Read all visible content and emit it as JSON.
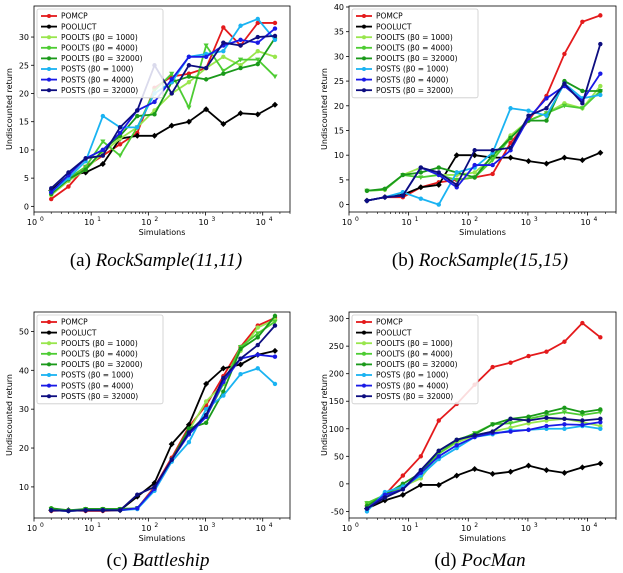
{
  "colors": {
    "POMCP": "#e41a1c",
    "POOLUCT": "#000000",
    "POOLTS (β0 = 1000)": "#99e64d",
    "POOLTS (β0 = 4000)": "#4dcc33",
    "POOLTS (β0 = 32000)": "#1a991a",
    "POSTS (β0 = 1000)": "#1ab3f2",
    "POSTS (β0 = 4000)": "#1a1ae6",
    "POSTS (β0 = 32000)": "#0d0d80"
  },
  "chart_data": [
    {
      "type": "line",
      "caption_prefix": "(a) ",
      "caption_title": "RockSample(11,11)",
      "xlabel": "Simulations",
      "ylabel": "Undiscounted return",
      "xscale": "log",
      "xlim": [
        1,
        30000
      ],
      "ylim": [
        -1,
        35.5
      ],
      "yticks": [
        0,
        5,
        10,
        15,
        20,
        25,
        30
      ],
      "legend": "top-left",
      "x": [
        2,
        4,
        8,
        16,
        32,
        64,
        128,
        256,
        512,
        1024,
        2048,
        4096,
        8192,
        16384
      ],
      "series": [
        {
          "name": "POMCP",
          "values": [
            1.3,
            3.5,
            7,
            9,
            11,
            13,
            21,
            23,
            23.5,
            24.5,
            31.7,
            28.5,
            32.5,
            32.5
          ]
        },
        {
          "name": "POOLUCT",
          "values": [
            2.8,
            5.5,
            6,
            7.5,
            12,
            12.5,
            12.5,
            14.3,
            15,
            17.2,
            14.6,
            16.5,
            16.3,
            18
          ]
        },
        {
          "name": "POOLTS (β0 = 1000)",
          "values": [
            2,
            4.5,
            6.5,
            9.5,
            12,
            14,
            17,
            20,
            22,
            24.5,
            26.5,
            25,
            27.5,
            26.5
          ]
        },
        {
          "name": "POOLTS (β0 = 4000)",
          "values": [
            2.5,
            5,
            7,
            11.5,
            9,
            14,
            20.5,
            23.5,
            17.5,
            28.5,
            24,
            26,
            26,
            23
          ]
        },
        {
          "name": "POOLTS (β0 = 32000)",
          "values": [
            2.2,
            4.8,
            6.5,
            10,
            12.5,
            16,
            16.3,
            22,
            23,
            22.5,
            23.5,
            24.5,
            25.2,
            29.8
          ]
        },
        {
          "name": "POSTS (β0 = 1000)",
          "values": [
            2.5,
            5,
            8,
            16,
            14,
            14,
            20,
            22,
            26.5,
            27,
            27.5,
            32,
            33.2,
            29.5
          ]
        },
        {
          "name": "POSTS (β0 = 4000)",
          "values": [
            2.5,
            5.5,
            8.5,
            10,
            13,
            17,
            18.5,
            22.5,
            26.5,
            26.5,
            28.5,
            29.5,
            29,
            31.5
          ]
        },
        {
          "name": "POSTS (β0 = 32000)",
          "values": [
            3.2,
            6,
            8.5,
            9,
            14,
            17,
            25,
            20,
            25,
            24.5,
            29,
            28.5,
            30,
            30.2
          ]
        }
      ]
    },
    {
      "type": "line",
      "caption_prefix": "(b) ",
      "caption_title": "RockSample(15,15)",
      "xlabel": "Simulations",
      "ylabel": "Undiscounted return",
      "xscale": "log",
      "xlim": [
        1,
        30000
      ],
      "ylim": [
        -1.5,
        40.2
      ],
      "yticks": [
        0,
        5,
        10,
        15,
        20,
        25,
        30,
        35,
        40
      ],
      "legend": "top-left",
      "x": [
        2,
        4,
        8,
        16,
        32,
        64,
        128,
        256,
        512,
        1024,
        2048,
        4096,
        8192,
        16384
      ],
      "series": [
        {
          "name": "POMCP",
          "values": [
            0.8,
            1.5,
            1.5,
            3.5,
            4.5,
            5,
            5.5,
            6.2,
            12.5,
            17,
            22,
            30.5,
            37,
            38.3
          ]
        },
        {
          "name": "POOLUCT",
          "values": [
            0.8,
            1.5,
            2,
            3.5,
            4,
            10,
            10,
            9.5,
            9.5,
            8.8,
            8.3,
            9.5,
            9,
            10.5
          ]
        },
        {
          "name": "POOLTS (β0 = 1000)",
          "values": [
            2.8,
            3,
            6,
            7.5,
            6,
            6,
            6.5,
            9.5,
            14,
            17,
            18.5,
            20.5,
            19.5,
            24
          ]
        },
        {
          "name": "POOLTS (β0 = 4000)",
          "values": [
            2.8,
            3,
            6,
            5.5,
            6,
            5,
            5.5,
            9,
            13.5,
            17,
            18.5,
            20,
            19.5,
            23
          ]
        },
        {
          "name": "POOLTS (β0 = 32000)",
          "values": [
            2.8,
            3.2,
            6,
            6.5,
            7.5,
            6.5,
            5.5,
            10,
            13.5,
            17,
            17,
            25,
            23,
            23
          ]
        },
        {
          "name": "POSTS (β0 = 1000)",
          "values": [
            0.8,
            1.5,
            2.5,
            1.2,
            0,
            6.5,
            7.5,
            10.5,
            19.5,
            19,
            18,
            24.5,
            21.5,
            22.2
          ]
        },
        {
          "name": "POSTS (β0 = 4000)",
          "values": [
            0.8,
            1.5,
            1.8,
            7.5,
            6,
            3.5,
            8,
            8,
            11,
            17.5,
            21.5,
            24,
            21,
            26.5
          ]
        },
        {
          "name": "POSTS (β0 = 32000)",
          "values": [
            0.8,
            1.5,
            1.8,
            7.5,
            6.5,
            4,
            11,
            11,
            11.5,
            18,
            19.5,
            24.5,
            20.5,
            32.5
          ]
        }
      ]
    },
    {
      "type": "line",
      "caption_prefix": "(c) ",
      "caption_title": "Battleship",
      "xlabel": "Simulations",
      "ylabel": "Undiscounted return",
      "xscale": "log",
      "xlim": [
        1,
        30000
      ],
      "ylim": [
        2,
        55
      ],
      "yticks": [
        10,
        20,
        30,
        40,
        50
      ],
      "legend": "top-left",
      "x": [
        2,
        4,
        8,
        16,
        32,
        64,
        128,
        256,
        512,
        1024,
        2048,
        4096,
        8192,
        16384
      ],
      "series": [
        {
          "name": "POMCP",
          "values": [
            3.8,
            4,
            3.8,
            3.8,
            4,
            4.5,
            10,
            17.5,
            25.5,
            31,
            38.5,
            46,
            51.5,
            53.5
          ]
        },
        {
          "name": "POOLUCT",
          "values": [
            4,
            4,
            4,
            4,
            4,
            7.5,
            11,
            21,
            26,
            36.5,
            40.5,
            41.5,
            44,
            45
          ]
        },
        {
          "name": "POOLTS (β0 = 1000)",
          "values": [
            4.5,
            3.8,
            4.3,
            4.3,
            4,
            4.5,
            9.5,
            17,
            24.5,
            32,
            36.5,
            45,
            51,
            53
          ]
        },
        {
          "name": "POOLTS (β0 = 4000)",
          "values": [
            4.3,
            3.8,
            4.3,
            4.3,
            4.3,
            4.5,
            9.5,
            17,
            24.5,
            28,
            36.5,
            46,
            49.5,
            52.5
          ]
        },
        {
          "name": "POOLTS (β0 = 32000)",
          "values": [
            4.5,
            4,
            4.3,
            4.3,
            4.3,
            4.5,
            9.5,
            17,
            25,
            26.5,
            34.5,
            45.5,
            48.5,
            54
          ]
        },
        {
          "name": "POSTS (β0 = 1000)",
          "values": [
            4,
            3.8,
            4,
            4,
            4,
            4.3,
            9,
            16.5,
            21.5,
            30,
            33.5,
            39,
            40.5,
            36.5
          ]
        },
        {
          "name": "POSTS (β0 = 4000)",
          "values": [
            4,
            3.8,
            4,
            4,
            4,
            4.5,
            9.5,
            17,
            23.5,
            28,
            37,
            43,
            44,
            43.5
          ]
        },
        {
          "name": "POSTS (β0 = 32000)",
          "values": [
            4,
            3.8,
            4,
            4,
            4,
            8,
            10,
            17,
            24,
            28.5,
            38,
            43,
            46.5,
            51.5
          ]
        }
      ]
    },
    {
      "type": "line",
      "caption_prefix": "(d) ",
      "caption_title": "PocMan",
      "xlabel": "Simulations",
      "ylabel": "Undiscounted return",
      "xscale": "log",
      "xlim": [
        1,
        30000
      ],
      "ylim": [
        -62,
        312
      ],
      "yticks": [
        -50,
        0,
        50,
        100,
        150,
        200,
        250,
        300
      ],
      "legend": "top-left",
      "x": [
        2,
        4,
        8,
        16,
        32,
        64,
        128,
        256,
        512,
        1024,
        2048,
        4096,
        8192,
        16384
      ],
      "series": [
        {
          "name": "POMCP",
          "values": [
            -40,
            -20,
            15,
            50,
            115,
            145,
            180,
            212,
            220,
            232,
            240,
            258,
            292,
            266
          ]
        },
        {
          "name": "POOLUCT",
          "values": [
            -45,
            -30,
            -20,
            -2,
            -2,
            15,
            27,
            18,
            22,
            33,
            25,
            20,
            30,
            37
          ]
        },
        {
          "name": "POOLTS (β0 = 1000)",
          "values": [
            -35,
            -25,
            -5,
            10,
            55,
            75,
            88,
            95,
            102,
            110,
            115,
            118,
            112,
            105
          ]
        },
        {
          "name": "POOLTS (β0 = 4000)",
          "values": [
            -35,
            -20,
            -5,
            15,
            55,
            78,
            92,
            108,
            110,
            118,
            125,
            130,
            125,
            130
          ]
        },
        {
          "name": "POOLTS (β0 = 32000)",
          "values": [
            -40,
            -20,
            0,
            20,
            60,
            80,
            90,
            108,
            118,
            122,
            130,
            138,
            130,
            135
          ]
        },
        {
          "name": "POSTS (β0 = 1000)",
          "values": [
            -50,
            -15,
            -5,
            15,
            45,
            65,
            85,
            90,
            97,
            98,
            100,
            100,
            105,
            100
          ]
        },
        {
          "name": "POSTS (β0 = 4000)",
          "values": [
            -45,
            -20,
            -10,
            20,
            50,
            70,
            85,
            92,
            95,
            98,
            105,
            108,
            107,
            112
          ]
        },
        {
          "name": "POSTS (β0 = 32000)",
          "values": [
            -45,
            -25,
            -10,
            25,
            60,
            80,
            88,
            95,
            118,
            115,
            120,
            118,
            115,
            118
          ]
        }
      ]
    }
  ]
}
